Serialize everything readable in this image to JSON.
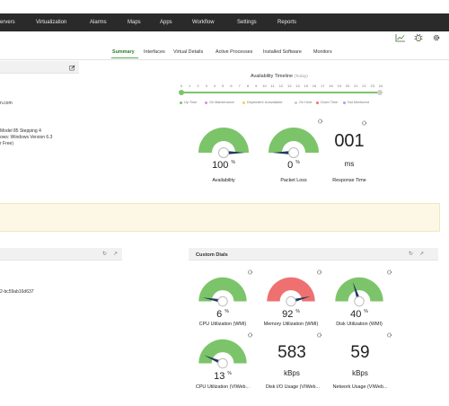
{
  "nav": {
    "items": [
      "ervers",
      "Virtualization",
      "Alarms",
      "Maps",
      "Apps",
      "Workflow",
      "Settings",
      "Reports"
    ]
  },
  "toolbar": {
    "icons": [
      "chart-icon",
      "bug-icon",
      "gear-icon"
    ]
  },
  "tabs": {
    "items": [
      "Summary",
      "Interfaces",
      "Virtual Details",
      "Active Processes",
      "Installed Software",
      "Monitors"
    ],
    "active": "Summary"
  },
  "left": {
    "text_domain": "n.com",
    "text_cpu_1": "Model 85 Stepping 4",
    "text_cpu_2": "ows: Windows Version 6.3",
    "text_cpu_3": "r Free)",
    "text_id": "2-bc59ab16d637"
  },
  "timeline": {
    "title": "Availability Timeline",
    "subtitle": "(Today)",
    "ticks": [
      "0",
      "1",
      "2",
      "3",
      "4",
      "5",
      "6",
      "7",
      "8",
      "9",
      "10",
      "11",
      "12",
      "13",
      "14",
      "15",
      "16",
      "17",
      "18",
      "19",
      "20",
      "21",
      "22",
      "23",
      "24"
    ],
    "legend": [
      {
        "label": "Up Time",
        "color": "#7cc46a"
      },
      {
        "label": "On Maintenance",
        "color": "#d98cd9"
      },
      {
        "label": "Dependent Unavailable",
        "color": "#f0d060"
      },
      {
        "label": "On Hold",
        "color": "#c8c8c8"
      },
      {
        "label": "Down Time",
        "color": "#f07070"
      },
      {
        "label": "Not Monitored",
        "color": "#a0a0ff"
      }
    ]
  },
  "summary_gauges": {
    "availability": {
      "value": "100",
      "unit": "%",
      "label": "Availability",
      "fraction": 1.0
    },
    "packet_loss": {
      "value": "0",
      "unit": "%",
      "label": "Packet Loss",
      "fraction": 0.0
    },
    "response_time": {
      "value": "001",
      "unit": "ms",
      "label": "Response Time"
    }
  },
  "custom_dials": {
    "title": "Custom Dials",
    "cpu": {
      "value": "6",
      "unit": "%",
      "label": "CPU Utilization (WMI)",
      "fraction": 0.06
    },
    "memory": {
      "value": "92",
      "unit": "%",
      "label": "Memory Utilization (WMI)",
      "fraction": 0.92
    },
    "disk": {
      "value": "40",
      "unit": "%",
      "label": "Disk Utilization (WMI)",
      "fraction": 0.4
    },
    "cpu_vi": {
      "value": "13",
      "unit": "%",
      "label": "CPU Utilization (VIWeb...",
      "fraction": 0.13
    },
    "disk_io": {
      "value": "583",
      "unit": "kBps",
      "label": "Disk I/O Usage (VIWeb..."
    },
    "network": {
      "value": "59",
      "unit": "kBps",
      "label": "Network Usage (VIWeb..."
    }
  },
  "colors": {
    "green": "#7cc46a",
    "red": "#ef7070",
    "needle": "#1f3a5c",
    "nav_bg": "#2a2a2a"
  }
}
